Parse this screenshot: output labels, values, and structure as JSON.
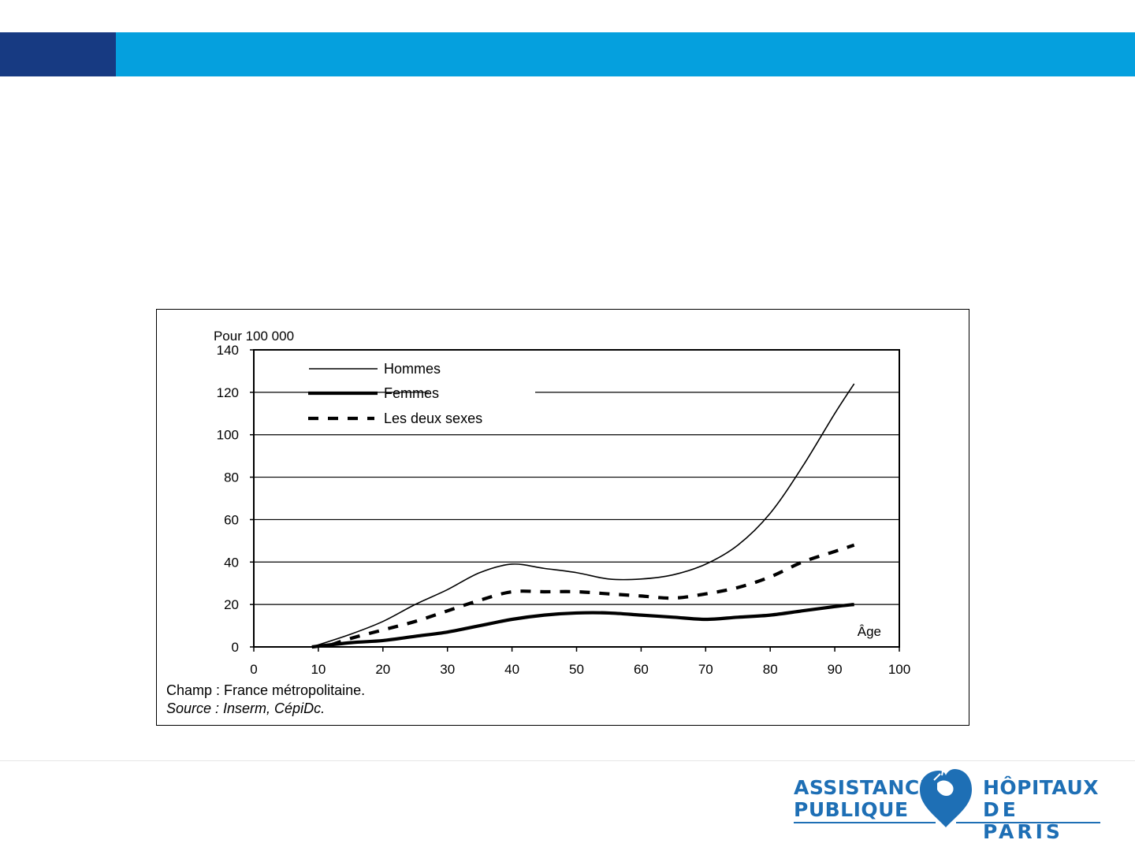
{
  "colors": {
    "header_dark": "#173a82",
    "header_light": "#05a0de",
    "logo_blue": "#1e6fb5"
  },
  "logo": {
    "left_line1": "ASSISTANCE",
    "left_line2": "PUBLIQUE",
    "right_line1": "HÔPITAUX",
    "right_line2": "DE PARIS",
    "icon": "heart-bird-icon"
  },
  "chart_notes": {
    "champ": "Champ : France métropolitaine.",
    "source": "Source : Inserm, CépiDc."
  },
  "chart_data": {
    "type": "line",
    "ylabel": "Pour 100 000",
    "xlabel": "Âge",
    "xlim": [
      0,
      100
    ],
    "ylim": [
      0,
      140
    ],
    "xticks": [
      0,
      10,
      20,
      30,
      40,
      50,
      60,
      70,
      80,
      90,
      100
    ],
    "yticks": [
      0,
      20,
      40,
      60,
      80,
      100,
      120,
      140
    ],
    "grid": "horizontal",
    "legend_position": "top-left",
    "series": [
      {
        "name": "Hommes",
        "style": "thin",
        "x": [
          9,
          15,
          20,
          25,
          30,
          35,
          40,
          45,
          50,
          55,
          60,
          65,
          70,
          75,
          80,
          85,
          90,
          93
        ],
        "y": [
          0,
          6,
          12,
          20,
          27,
          35,
          39,
          37,
          35,
          32,
          32,
          34,
          39,
          48,
          63,
          85,
          110,
          124
        ]
      },
      {
        "name": "Femmes",
        "style": "thick",
        "x": [
          9,
          15,
          20,
          25,
          30,
          35,
          40,
          45,
          50,
          55,
          60,
          65,
          70,
          75,
          80,
          85,
          90,
          93
        ],
        "y": [
          0,
          2,
          3,
          5,
          7,
          10,
          13,
          15,
          16,
          16,
          15,
          14,
          13,
          14,
          15,
          17,
          19,
          20
        ]
      },
      {
        "name": "Les deux sexes",
        "style": "dashed",
        "x": [
          12,
          15,
          20,
          25,
          30,
          35,
          40,
          45,
          50,
          55,
          60,
          65,
          70,
          75,
          80,
          85,
          90,
          93
        ],
        "y": [
          1,
          4,
          8,
          12,
          17,
          22,
          26,
          26,
          26,
          25,
          24,
          23,
          25,
          28,
          33,
          40,
          45,
          48
        ]
      }
    ]
  }
}
